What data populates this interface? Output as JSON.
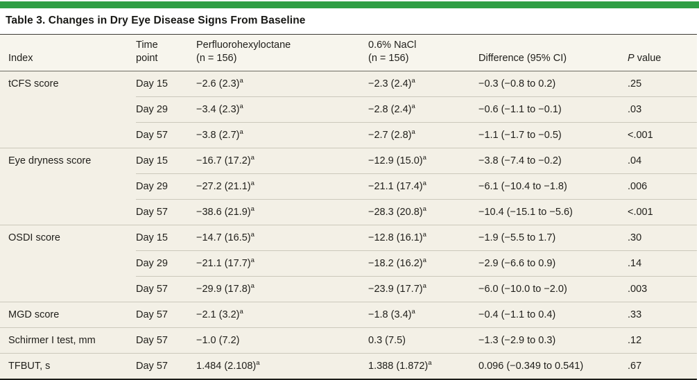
{
  "colors": {
    "accent_bar": "#2f9e44",
    "row_background": "#f3f0e6",
    "header_background": "#f7f5ed",
    "rule_light": "#cbc8bb",
    "rule_dark": "#1c1c19"
  },
  "title": "Table 3. Changes in Dry Eye Disease Signs From Baseline",
  "table": {
    "header": {
      "index": "Index",
      "time_line1": "Time",
      "time_line2": "point",
      "drug_line1": "Perfluorohexyloctane",
      "drug_line2": "(n = 156)",
      "nacl_line1": "0.6% NaCl",
      "nacl_line2": "(n = 156)",
      "diff": "Difference (95% CI)",
      "p_italic": "P",
      "p_rest": " value"
    },
    "groups": [
      {
        "index": "tCFS score",
        "rows": [
          {
            "time": "Day 15",
            "drug": "−2.6 (2.3)",
            "drug_sup": "a",
            "nacl": "−2.3 (2.4)",
            "nacl_sup": "a",
            "diff": "−0.3 (−0.8 to 0.2)",
            "p": ".25"
          },
          {
            "time": "Day 29",
            "drug": "−3.4 (2.3)",
            "drug_sup": "a",
            "nacl": "−2.8 (2.4)",
            "nacl_sup": "a",
            "diff": "−0.6 (−1.1 to −0.1)",
            "p": ".03"
          },
          {
            "time": "Day 57",
            "drug": "−3.8 (2.7)",
            "drug_sup": "a",
            "nacl": "−2.7 (2.8)",
            "nacl_sup": "a",
            "diff": "−1.1 (−1.7 to −0.5)",
            "p": "<.001"
          }
        ]
      },
      {
        "index": "Eye dryness score",
        "rows": [
          {
            "time": "Day 15",
            "drug": "−16.7 (17.2)",
            "drug_sup": "a",
            "nacl": "−12.9 (15.0)",
            "nacl_sup": "a",
            "diff": "−3.8 (−7.4 to −0.2)",
            "p": ".04"
          },
          {
            "time": "Day 29",
            "drug": "−27.2 (21.1)",
            "drug_sup": "a",
            "nacl": "−21.1 (17.4)",
            "nacl_sup": "a",
            "diff": "−6.1 (−10.4 to −1.8)",
            "p": ".006"
          },
          {
            "time": "Day 57",
            "drug": "−38.6 (21.9)",
            "drug_sup": "a",
            "nacl": "−28.3 (20.8)",
            "nacl_sup": "a",
            "diff": "−10.4 (−15.1 to −5.6)",
            "p": "<.001"
          }
        ]
      },
      {
        "index": "OSDI score",
        "rows": [
          {
            "time": "Day 15",
            "drug": "−14.7 (16.5)",
            "drug_sup": "a",
            "nacl": "−12.8 (16.1)",
            "nacl_sup": "a",
            "diff": "−1.9 (−5.5 to 1.7)",
            "p": ".30"
          },
          {
            "time": "Day 29",
            "drug": "−21.1 (17.7)",
            "drug_sup": "a",
            "nacl": "−18.2 (16.2)",
            "nacl_sup": "a",
            "diff": "−2.9 (−6.6 to 0.9)",
            "p": ".14"
          },
          {
            "time": "Day 57",
            "drug": "−29.9 (17.8)",
            "drug_sup": "a",
            "nacl": "−23.9 (17.7)",
            "nacl_sup": "a",
            "diff": "−6.0 (−10.0 to −2.0)",
            "p": ".003"
          }
        ]
      },
      {
        "index": "MGD score",
        "rows": [
          {
            "time": "Day 57",
            "drug": "−2.1 (3.2)",
            "drug_sup": "a",
            "nacl": "−1.8 (3.4)",
            "nacl_sup": "a",
            "diff": "−0.4 (−1.1 to 0.4)",
            "p": ".33"
          }
        ]
      },
      {
        "index": "Schirmer I test, mm",
        "rows": [
          {
            "time": "Day 57",
            "drug": "−1.0 (7.2)",
            "drug_sup": "",
            "nacl": "0.3 (7.5)",
            "nacl_sup": "",
            "diff": "−1.3 (−2.9 to 0.3)",
            "p": ".12"
          }
        ]
      },
      {
        "index": "TFBUT, s",
        "rows": [
          {
            "time": "Day 57",
            "drug": "1.484 (2.108)",
            "drug_sup": "a",
            "nacl": "1.388 (1.872)",
            "nacl_sup": "a",
            "diff": "0.096 (−0.349 to 0.541)",
            "p": ".67"
          }
        ]
      }
    ]
  }
}
